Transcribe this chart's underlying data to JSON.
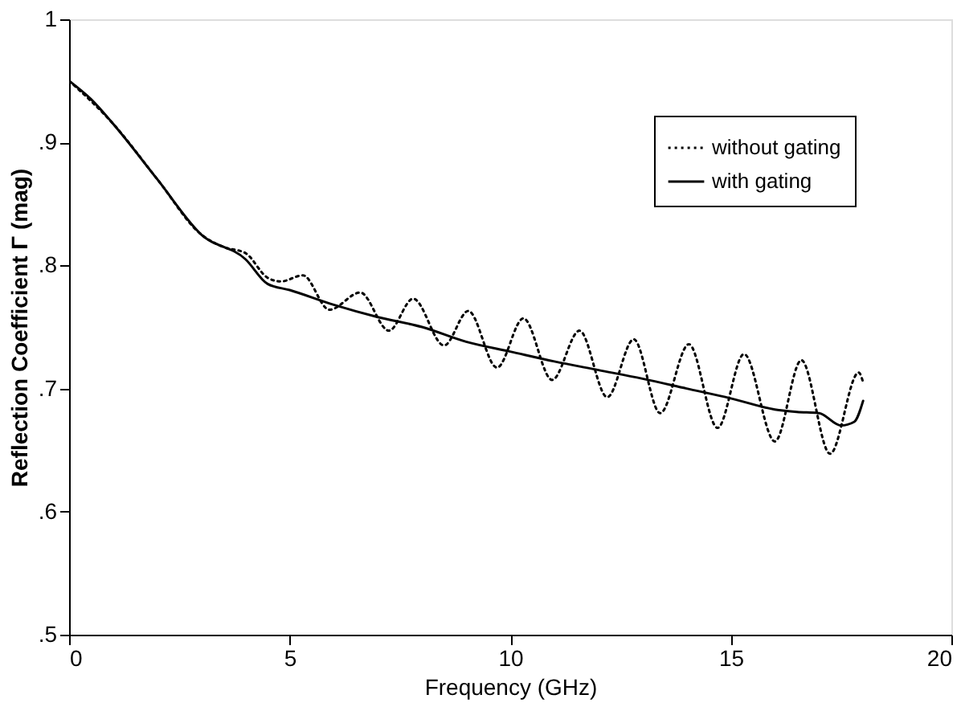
{
  "chart_data": {
    "type": "line",
    "xlabel": "Frequency (GHz)",
    "ylabel": "Reflection Coefficient Γ (mag)",
    "xlim": [
      0,
      20
    ],
    "xticks": [
      0,
      5,
      10,
      15,
      20
    ],
    "ylim": [
      0.5,
      1
    ],
    "yticks": [
      {
        "value": 0.5,
        "label": ".5"
      },
      {
        "value": 0.6,
        "label": ".6"
      },
      {
        "value": 0.7,
        "label": ".7"
      },
      {
        "value": 0.8,
        "label": ".8"
      },
      {
        "value": 0.9,
        "label": ".9"
      },
      1
    ],
    "grid": false,
    "legend": "top right",
    "series": [
      {
        "name": "without gating",
        "color": "#000000",
        "line_style": "dotted",
        "x": [
          0,
          1,
          2,
          3,
          3.5,
          4,
          4.5,
          4.8,
          5.3,
          5.9,
          6.6,
          7.25,
          7.8,
          8.5,
          9.05,
          9.7,
          10.3,
          10.95,
          11.57,
          12.2,
          12.8,
          13.4,
          14.05,
          14.7,
          15.3,
          16.0,
          16.6,
          17.25,
          17.9,
          18.0
        ],
        "values": [
          0.95,
          0.915,
          0.87,
          0.825,
          0.815,
          0.81,
          0.79,
          0.787,
          0.792,
          0.764,
          0.778,
          0.747,
          0.773,
          0.735,
          0.763,
          0.717,
          0.757,
          0.707,
          0.747,
          0.693,
          0.74,
          0.68,
          0.736,
          0.668,
          0.728,
          0.657,
          0.723,
          0.647,
          0.713,
          0.705
        ]
      },
      {
        "name": "with gating",
        "color": "#000000",
        "line_style": "solid",
        "x": [
          0,
          0.5,
          1,
          2,
          3,
          4,
          4.5,
          5,
          6,
          7,
          8,
          9,
          10,
          11,
          12,
          13,
          14,
          15,
          16,
          16.5,
          17,
          17.5,
          17.8,
          18
        ],
        "values": [
          0.95,
          0.935,
          0.915,
          0.87,
          0.825,
          0.805,
          0.785,
          0.78,
          0.768,
          0.758,
          0.75,
          0.738,
          0.73,
          0.722,
          0.715,
          0.708,
          0.7,
          0.692,
          0.683,
          0.681,
          0.68,
          0.67,
          0.673,
          0.69
        ]
      }
    ]
  }
}
